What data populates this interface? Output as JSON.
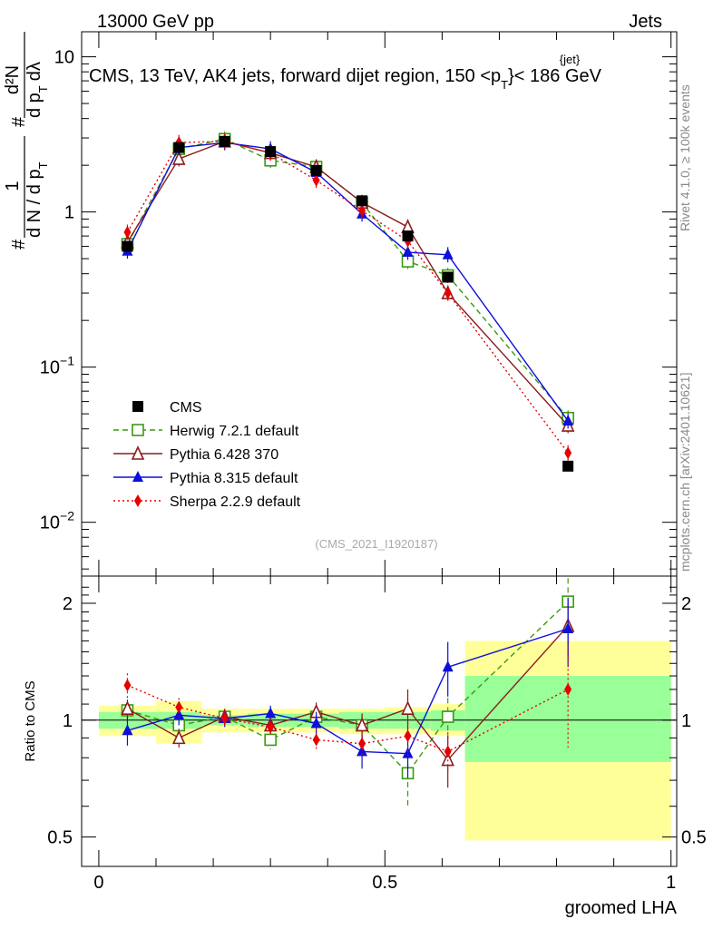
{
  "header": {
    "left": "13000 GeV pp",
    "right": "Jets",
    "title": "CMS, 13 TeV, AK4 jets, forward dijet region, 150 <p",
    "title_sup": "{jet}",
    "title_sub": "T",
    "title_end": "}< 186 GeV",
    "rivet": "Rivet 4.1.0, ≥ 100k events",
    "mcplots": "mcplots.cern.ch [arXiv:2401.10621]",
    "analysis": "(CMS_2021_I1920187)"
  },
  "ylabel_parts": {
    "hash": "#",
    "frac1_num": "1",
    "frac1_den": "d N / d p",
    "frac1_den_sub": "T",
    "hash2": "#",
    "frac2_num": "d²N",
    "frac2_den": "d p",
    "frac2_den_sub": "T",
    "frac2_den_end": "dλ"
  },
  "chart_data": {
    "type": "line",
    "x_label": "groomed LHA",
    "ratio_label": "Ratio to CMS",
    "x_range": [
      -0.03,
      1.01
    ],
    "x_ticks": [
      {
        "v": 0,
        "label": "0"
      },
      {
        "v": 0.5,
        "label": "0.5"
      },
      {
        "v": 1,
        "label": "1"
      }
    ],
    "y_scale": "log",
    "y_range": [
      0.0045,
      14.5
    ],
    "y_ticks": [
      {
        "v": 0.01,
        "base": "10",
        "exp": "−2"
      },
      {
        "v": 0.1,
        "base": "10",
        "exp": "−1"
      },
      {
        "v": 1,
        "base": "1",
        "exp": ""
      },
      {
        "v": 10,
        "base": "10",
        "exp": ""
      }
    ],
    "ratio_range": [
      0.42,
      2.35
    ],
    "ratio_ticks": [
      {
        "v": 0.5,
        "label": "0.5"
      },
      {
        "v": 1,
        "label": "1"
      },
      {
        "v": 2,
        "label": "2"
      }
    ],
    "x": [
      0.05,
      0.14,
      0.22,
      0.3,
      0.38,
      0.46,
      0.54,
      0.61,
      0.82
    ],
    "bin_edges": [
      0,
      0.1,
      0.18,
      0.26,
      0.34,
      0.42,
      0.5,
      0.58,
      0.64,
      1.0
    ],
    "band_stat": [
      [
        0.95,
        1.05
      ],
      [
        0.95,
        1.05
      ],
      [
        0.97,
        1.03
      ],
      [
        0.96,
        1.04
      ],
      [
        0.96,
        1.04
      ],
      [
        0.95,
        1.05
      ],
      [
        0.95,
        1.05
      ],
      [
        0.94,
        1.06
      ],
      [
        0.78,
        1.3
      ]
    ],
    "band_total": [
      [
        0.91,
        1.09
      ],
      [
        0.87,
        1.12
      ],
      [
        0.93,
        1.07
      ],
      [
        0.93,
        1.07
      ],
      [
        0.93,
        1.07
      ],
      [
        0.92,
        1.07
      ],
      [
        0.92,
        1.08
      ],
      [
        0.91,
        1.1
      ],
      [
        0.49,
        1.6
      ]
    ],
    "series": [
      {
        "name": "CMS",
        "color": "#000000",
        "dash": "",
        "marker": "square-filled",
        "values": [
          0.6,
          2.6,
          2.85,
          2.45,
          1.85,
          1.18,
          0.7,
          0.38,
          0.023
        ],
        "ratio": [
          1,
          1,
          1,
          1,
          1,
          1,
          1,
          1,
          1
        ],
        "ratio_err": [
          0,
          0,
          0,
          0,
          0,
          0,
          0,
          0,
          0
        ]
      },
      {
        "name": "Herwig 7.2.1 default",
        "color": "#3a9a10",
        "dash": "6,4",
        "marker": "square-open",
        "values": [
          0.62,
          2.55,
          2.95,
          2.15,
          1.95,
          1.15,
          0.48,
          0.39,
          0.047
        ],
        "ratio": [
          1.06,
          0.97,
          1.02,
          0.89,
          1.02,
          0.97,
          0.73,
          1.02,
          2.02
        ],
        "ratio_err": [
          0.04,
          0.03,
          0.04,
          0.05,
          0.05,
          0.07,
          0.13,
          0.12,
          0.3
        ]
      },
      {
        "name": "Pythia 6.428 370",
        "color": "#8b1c1c",
        "dash": "",
        "marker": "triangle-open",
        "values": [
          0.64,
          2.2,
          2.85,
          2.4,
          1.95,
          1.15,
          0.8,
          0.3,
          0.042
        ],
        "ratio": [
          1.07,
          0.9,
          1.02,
          0.97,
          1.05,
          0.97,
          1.07,
          0.79,
          1.75
        ],
        "ratio_err": [
          0.06,
          0.05,
          0.05,
          0.05,
          0.06,
          0.07,
          0.13,
          0.12,
          0.3
        ]
      },
      {
        "name": "Pythia 8.315 default",
        "color": "#0d10d8",
        "dash": "",
        "marker": "triangle-filled",
        "values": [
          0.56,
          2.6,
          2.8,
          2.55,
          1.8,
          0.97,
          0.55,
          0.53,
          0.045
        ],
        "ratio": [
          0.94,
          1.03,
          1.01,
          1.04,
          0.98,
          0.83,
          0.82,
          1.37,
          1.72
        ],
        "ratio_err": [
          0.08,
          0.06,
          0.05,
          0.05,
          0.07,
          0.08,
          0.11,
          0.22,
          0.35
        ]
      },
      {
        "name": "Sherpa 2.2.9 default",
        "color": "#e80000",
        "dash": "2,3",
        "marker": "diamond",
        "values": [
          0.74,
          2.8,
          2.85,
          2.4,
          1.6,
          1.02,
          0.65,
          0.3,
          0.028
        ],
        "ratio": [
          1.23,
          1.08,
          1.01,
          0.96,
          0.89,
          0.87,
          0.91,
          0.83,
          1.2
        ],
        "ratio_err": [
          0.09,
          0.06,
          0.05,
          0.05,
          0.06,
          0.07,
          0.1,
          0.1,
          0.35
        ]
      }
    ]
  }
}
